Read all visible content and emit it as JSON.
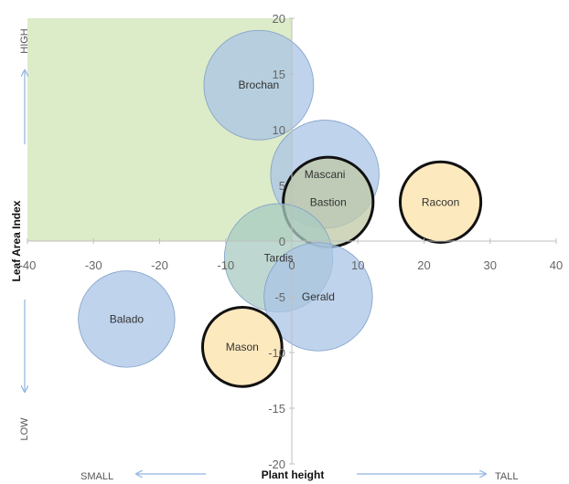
{
  "chart_data": {
    "type": "bubble",
    "xlim": [
      -40,
      40
    ],
    "ylim": [
      -20,
      20
    ],
    "x_ticks": [
      "-40",
      "-30",
      "-20",
      "-10",
      "0",
      "10",
      "20",
      "30",
      "40"
    ],
    "y_ticks": [
      "20",
      "15",
      "10",
      "5",
      "0",
      "-5",
      "-10",
      "-15",
      "-20"
    ],
    "xlabel": "Plant height",
    "ylabel": "Leaf Area Index",
    "x_low_label": "SMALL",
    "x_high_label": "TALL",
    "y_high_label": "HIGH",
    "y_low_label": "LOW",
    "grid": false,
    "highlight_region": {
      "x": [
        -40,
        0
      ],
      "y": [
        0,
        20
      ],
      "color": "#dcebc8"
    },
    "points": [
      {
        "name": "Brochan",
        "x": -5,
        "y": 14,
        "size": 8.3,
        "color": "#a9c4e6",
        "outlined": false
      },
      {
        "name": "Mascani",
        "x": 5,
        "y": 6,
        "size": 8.2,
        "color": "#a9c4e6",
        "outlined": false
      },
      {
        "name": "Bastion",
        "x": 5.5,
        "y": 3.5,
        "size": 6.8,
        "color": "#bfc8a6",
        "outlined": true
      },
      {
        "name": "Racoon",
        "x": 22.5,
        "y": 3.5,
        "size": 6.1,
        "color": "#fce2a8",
        "outlined": true
      },
      {
        "name": "Tardis",
        "x": -2,
        "y": -1.5,
        "size": 8.2,
        "color": "#a8cbc2",
        "outlined": false
      },
      {
        "name": "Gerald",
        "x": 4,
        "y": -5,
        "size": 8.2,
        "color": "#a9c4e6",
        "outlined": false
      },
      {
        "name": "Balado",
        "x": -25,
        "y": -7,
        "size": 7.3,
        "color": "#a9c4e6",
        "outlined": false
      },
      {
        "name": "Mason",
        "x": -7.5,
        "y": -9.5,
        "size": 6.0,
        "color": "#fce2a8",
        "outlined": true
      }
    ]
  }
}
